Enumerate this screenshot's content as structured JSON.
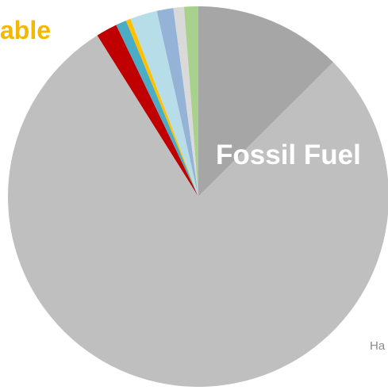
{
  "chart_data": {
    "type": "pie",
    "title": "",
    "slices": [
      {
        "value": 12.5,
        "color": "#A6A6A6"
      },
      {
        "value": 78.5,
        "color": "#BFBFBF"
      },
      {
        "value": 1.8,
        "color": "#C00000"
      },
      {
        "value": 0.9,
        "color": "#4BACC6"
      },
      {
        "value": 0.4,
        "color": "#FFC000"
      },
      {
        "value": 2.3,
        "color": "#B7DEE8"
      },
      {
        "value": 1.4,
        "color": "#95B3D7"
      },
      {
        "value": 0.9,
        "color": "#D9D9D9"
      },
      {
        "value": 1.2,
        "color": "#A9D18E"
      }
    ],
    "labels": {
      "renewable": "able",
      "fossil_fuel": "Fossil Fuel",
      "partial": "Ha"
    }
  }
}
